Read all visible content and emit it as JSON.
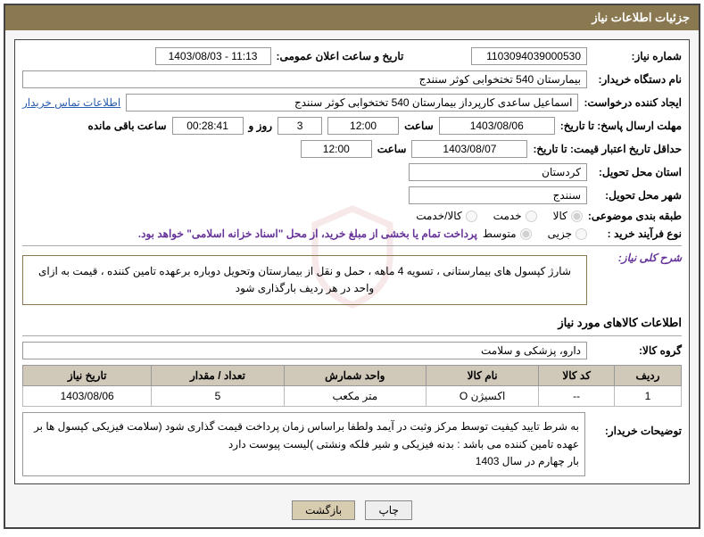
{
  "header": {
    "title": "جزئیات اطلاعات نیاز"
  },
  "fields": {
    "need_no_label": "شماره نیاز:",
    "need_no": "1103094039000530",
    "announce_dt_label": "تاریخ و ساعت اعلان عمومی:",
    "announce_dt": "1403/08/03 - 11:13",
    "buyer_org_label": "نام دستگاه خریدار:",
    "buyer_org": "بیمارستان 540 تختخوابی کوثر سنندج",
    "requester_label": "ایجاد کننده درخواست:",
    "requester": "اسماعیل ساعدی کارپرداز بیمارستان 540 تختخوابی کوثر سنندج",
    "buyer_contact_link": "اطلاعات تماس خریدار",
    "reply_deadline_label": "مهلت ارسال پاسخ: تا تاریخ:",
    "reply_date": "1403/08/06",
    "hour_label": "ساعت",
    "reply_time": "12:00",
    "days_remaining": "3",
    "day_and": "روز و",
    "time_remaining": "00:28:41",
    "hours_remaining_label": "ساعت باقی مانده",
    "price_validity_label": "حداقل تاریخ اعتبار قیمت: تا تاریخ:",
    "price_date": "1403/08/07",
    "price_time": "12:00",
    "delivery_prov_label": "استان محل تحویل:",
    "delivery_prov": "کردستان",
    "delivery_city_label": "شهر محل تحویل:",
    "delivery_city": "سنندج",
    "subject_class_label": "طبقه بندی موضوعی:",
    "radio_goods": "کالا",
    "radio_service": "خدمت",
    "radio_goods_service": "کالا/خدمت",
    "process_type_label": "نوع فرآیند خرید :",
    "radio_partial": "جزیی",
    "radio_medium": "متوسط",
    "process_note": "پرداخت تمام یا بخشی از مبلغ خرید، از محل \"اسناد خزانه اسلامی\" خواهد بود.",
    "overall_desc_label": "شرح کلی نیاز:",
    "overall_desc": "شارژ کپسول های بیمارستانی ، تسویه 4 ماهه ، حمل و نقل از بیمارستان وتحویل دوباره برعهده تامین کننده ، قیمت به ازای واحد در هر ردیف بارگذاری شود",
    "items_section_title": "اطلاعات کالاهای مورد نیاز",
    "goods_group_label": "گروه کالا:",
    "goods_group": "دارو، پزشکی و سلامت",
    "buyer_notes_label": "توضیحات خریدار:",
    "buyer_notes": "به شرط تایید کیفیت توسط مرکز وثبت در آیمد ولطفا براساس زمان پرداخت قیمت گذاری شود (سلامت فیزیکی کپسول ها بر عهده تامین کننده می باشد : بدنه فیزیکی و شیر فلکه ونشتی )لیست پیوست  دارد",
    "buyer_notes2": "بار چهارم  در سال 1403"
  },
  "table": {
    "columns": [
      "ردیف",
      "کد کالا",
      "نام کالا",
      "واحد شمارش",
      "تعداد / مقدار",
      "تاریخ نیاز"
    ],
    "rows": [
      [
        "1",
        "--",
        "اکسیژن O",
        "متر مکعب",
        "5",
        "1403/08/06"
      ]
    ]
  },
  "buttons": {
    "print": "چاپ",
    "back": "بازگشت"
  },
  "colors": {
    "header_bg": "#8a7850",
    "accent_border": "#8a7850",
    "th_bg": "#d0c8b8",
    "link": "#2a5db0",
    "purple": "#663399"
  }
}
